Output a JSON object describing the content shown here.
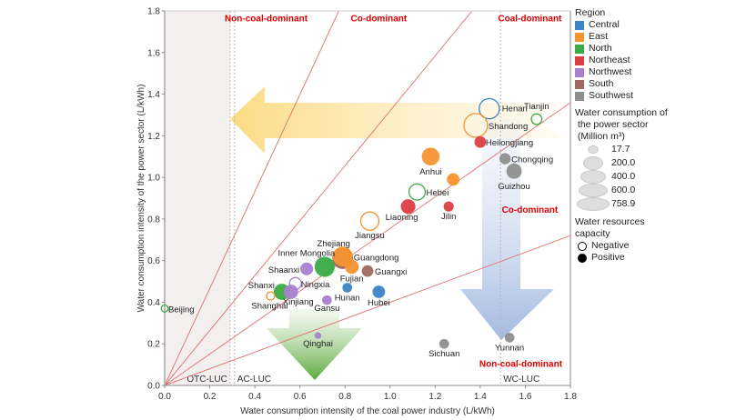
{
  "chart_data": {
    "type": "scatter",
    "xlabel": "Water consumption intensity of the coal power industry (L/kWh)",
    "ylabel": "Water consumption intensity of the power sector (L/kWh)",
    "xlim": [
      0,
      1.8
    ],
    "ylim": [
      0,
      1.8
    ],
    "xticks": [
      "0.0",
      "0.2",
      "0.4",
      "0.6",
      "0.8",
      "1.0",
      "1.2",
      "1.4",
      "1.6",
      "1.8"
    ],
    "yticks": [
      "0.0",
      "0.2",
      "0.4",
      "0.6",
      "0.8",
      "1.0",
      "1.2",
      "1.4",
      "1.6",
      "1.8"
    ],
    "reference_lines_slopes": [
      2.33,
      1.32,
      0.755,
      0.4
    ],
    "vertical_lines": [
      {
        "x": 0.29,
        "label": "OTC-LUC"
      },
      {
        "x": 0.31,
        "label": "AC-LUC"
      },
      {
        "x": 1.49,
        "label": "WC-LUC"
      }
    ],
    "shaded_region_x": [
      0,
      0.29
    ],
    "zone_labels": [
      {
        "text": "Non-coal-dominant",
        "x": 0.45,
        "y": 1.75
      },
      {
        "text": "Co-dominant",
        "x": 0.95,
        "y": 1.75
      },
      {
        "text": "Coal-dominant",
        "x": 1.62,
        "y": 1.75
      },
      {
        "text": "Co-dominant",
        "x": 1.62,
        "y": 0.83
      },
      {
        "text": "Non-coal-dominant",
        "x": 1.58,
        "y": 0.09
      }
    ],
    "regions": {
      "Central": "#3a84c4",
      "East": "#f59331",
      "North": "#3aaa45",
      "Northeast": "#dc3e44",
      "Northwest": "#a97fcf",
      "South": "#a06860",
      "Southwest": "#8e8e8e"
    },
    "points": [
      {
        "name": "Henan",
        "x": 1.44,
        "y": 1.33,
        "region": "Central",
        "size": 520,
        "capacity": "Negative"
      },
      {
        "name": "Tianjin",
        "x": 1.65,
        "y": 1.28,
        "region": "North",
        "size": 90,
        "capacity": "Negative"
      },
      {
        "name": "Shandong",
        "x": 1.38,
        "y": 1.25,
        "region": "East",
        "size": 758.9,
        "capacity": "Negative"
      },
      {
        "name": "Heilongjiang",
        "x": 1.4,
        "y": 1.17,
        "region": "Northeast",
        "size": 120,
        "capacity": "Positive"
      },
      {
        "name": "Chongqing",
        "x": 1.51,
        "y": 1.09,
        "region": "Southwest",
        "size": 110,
        "capacity": "Positive"
      },
      {
        "name": "Guizhou",
        "x": 1.55,
        "y": 1.03,
        "region": "Southwest",
        "size": 260,
        "capacity": "Positive"
      },
      {
        "name": "Anhui",
        "x": 1.18,
        "y": 1.1,
        "region": "East",
        "size": 380,
        "capacity": "Positive"
      },
      {
        "name": "",
        "x": 1.28,
        "y": 0.99,
        "region": "East",
        "size": 150,
        "capacity": "Positive"
      },
      {
        "name": "Hebei",
        "x": 1.12,
        "y": 0.93,
        "region": "North",
        "size": 300,
        "capacity": "Negative"
      },
      {
        "name": "Liaoning",
        "x": 1.08,
        "y": 0.86,
        "region": "Northeast",
        "size": 230,
        "capacity": "Positive"
      },
      {
        "name": "Jilin",
        "x": 1.26,
        "y": 0.86,
        "region": "Northeast",
        "size": 80,
        "capacity": "Positive"
      },
      {
        "name": "Jiangsu",
        "x": 0.91,
        "y": 0.79,
        "region": "East",
        "size": 400,
        "capacity": "Negative"
      },
      {
        "name": "Guangdong",
        "x": 0.79,
        "y": 0.61,
        "region": "South",
        "size": 560,
        "capacity": "Positive"
      },
      {
        "name": "Zhejiang",
        "x": 0.79,
        "y": 0.62,
        "region": "East",
        "size": 500,
        "capacity": "Positive"
      },
      {
        "name": "Inner Mongolia",
        "x": 0.71,
        "y": 0.57,
        "region": "North",
        "size": 520,
        "capacity": "Positive"
      },
      {
        "name": "Fujian",
        "x": 0.83,
        "y": 0.57,
        "region": "East",
        "size": 200,
        "capacity": "Positive"
      },
      {
        "name": "Shaanxi",
        "x": 0.63,
        "y": 0.56,
        "region": "Northwest",
        "size": 160,
        "capacity": "Positive"
      },
      {
        "name": "Guangxi",
        "x": 0.9,
        "y": 0.55,
        "region": "South",
        "size": 120,
        "capacity": "Positive"
      },
      {
        "name": "Ningxia",
        "x": 0.58,
        "y": 0.49,
        "region": "Northwest",
        "size": 130,
        "capacity": "Negative"
      },
      {
        "name": "Shanxi",
        "x": 0.52,
        "y": 0.45,
        "region": "North",
        "size": 300,
        "capacity": "Positive"
      },
      {
        "name": "Xinjiang",
        "x": 0.56,
        "y": 0.45,
        "region": "Northwest",
        "size": 220,
        "capacity": "Positive"
      },
      {
        "name": "Shanghai",
        "x": 0.47,
        "y": 0.43,
        "region": "East",
        "size": 40,
        "capacity": "Negative"
      },
      {
        "name": "Hunan",
        "x": 0.81,
        "y": 0.47,
        "region": "Central",
        "size": 70,
        "capacity": "Positive"
      },
      {
        "name": "Hubei",
        "x": 0.95,
        "y": 0.45,
        "region": "Central",
        "size": 150,
        "capacity": "Positive"
      },
      {
        "name": "Gansu",
        "x": 0.72,
        "y": 0.41,
        "region": "Northwest",
        "size": 70,
        "capacity": "Positive"
      },
      {
        "name": "Beijing",
        "x": 0.0,
        "y": 0.37,
        "region": "North",
        "size": 20,
        "capacity": "Negative"
      },
      {
        "name": "Qinghai",
        "x": 0.68,
        "y": 0.24,
        "region": "Northwest",
        "size": 17.7,
        "capacity": "Positive"
      },
      {
        "name": "Sichuan",
        "x": 1.24,
        "y": 0.2,
        "region": "Southwest",
        "size": 70,
        "capacity": "Positive"
      },
      {
        "name": "Yunnan",
        "x": 1.53,
        "y": 0.23,
        "region": "Southwest",
        "size": 70,
        "capacity": "Positive"
      }
    ]
  },
  "legend": {
    "region_title": "Region",
    "regions": [
      {
        "label": "Central",
        "color": "#3a84c4"
      },
      {
        "label": "East",
        "color": "#f59331"
      },
      {
        "label": "North",
        "color": "#3aaa45"
      },
      {
        "label": "Northeast",
        "color": "#dc3e44"
      },
      {
        "label": "Northwest",
        "color": "#a97fcf"
      },
      {
        "label": "South",
        "color": "#a06860"
      },
      {
        "label": "Southwest",
        "color": "#8e8e8e"
      }
    ],
    "size_title_1": "Water consumption of",
    "size_title_2": " the power sector",
    "size_title_3": " (Million m³)",
    "sizes": [
      {
        "label": "17.7",
        "value": 17.7
      },
      {
        "label": "200.0",
        "value": 200
      },
      {
        "label": "400.0",
        "value": 400
      },
      {
        "label": "600.0",
        "value": 600
      },
      {
        "label": "758.9",
        "value": 758.9
      }
    ],
    "capacity_title_1": "Water resources",
    "capacity_title_2": "capacity",
    "capacity": [
      {
        "label": "Negative"
      },
      {
        "label": "Positive"
      }
    ]
  }
}
